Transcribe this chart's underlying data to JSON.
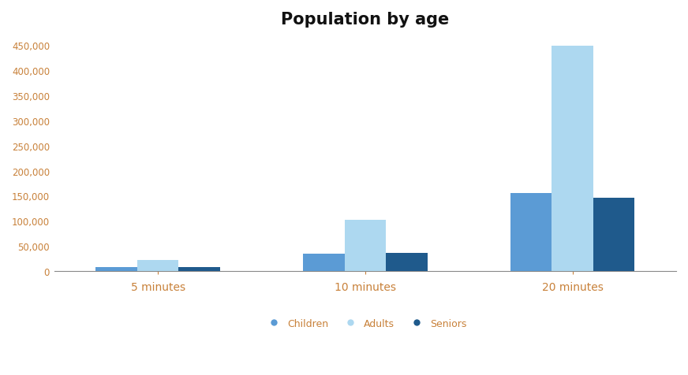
{
  "title": "Population by age",
  "categories": [
    "5 minutes",
    "10 minutes",
    "20 minutes"
  ],
  "series": [
    {
      "name": "Children",
      "values": [
        9000,
        35000,
        155000
      ],
      "color": "#5b9bd5"
    },
    {
      "name": "Adults",
      "values": [
        22000,
        103000,
        448000
      ],
      "color": "#add8f0"
    },
    {
      "name": "Seniors",
      "values": [
        8000,
        37000,
        146000
      ],
      "color": "#1f5a8c"
    }
  ],
  "ylim": [
    0,
    470000
  ],
  "yticks": [
    0,
    50000,
    100000,
    150000,
    200000,
    250000,
    300000,
    350000,
    400000,
    450000
  ],
  "bar_width": 0.2,
  "background_color": "#ffffff",
  "title_fontsize": 15,
  "tick_fontsize": 8.5,
  "legend_fontsize": 9,
  "ytick_color": "#c8813a",
  "xtick_color": "#c8813a"
}
